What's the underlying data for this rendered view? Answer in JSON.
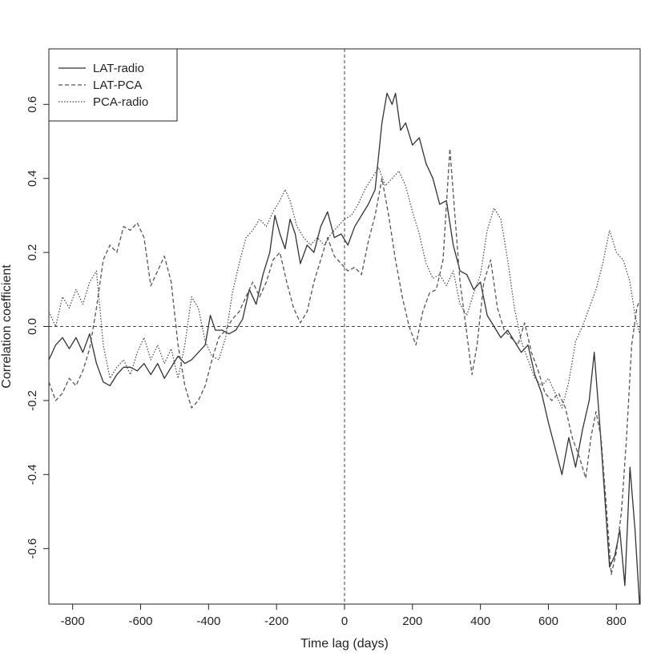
{
  "chart_data": {
    "type": "line",
    "title": "",
    "xlabel": "Time lag (days)",
    "ylabel": "Correlation coefficient",
    "xlim": [
      -870,
      870
    ],
    "ylim": [
      -0.75,
      0.75
    ],
    "xticks": [
      -800,
      -600,
      -400,
      -200,
      0,
      200,
      400,
      600,
      800
    ],
    "yticks": [
      -0.6,
      -0.4,
      -0.2,
      0.0,
      0.2,
      0.4,
      0.6
    ],
    "xtick_labels": [
      "-800",
      "-600",
      "-400",
      "-200",
      "0",
      "200",
      "400",
      "600",
      "800"
    ],
    "ytick_labels": [
      "-0.6",
      "-0.4",
      "-0.2",
      "0.0",
      "0.2",
      "0.4",
      "0.6"
    ],
    "reference_lines": {
      "horizontal": 0.0,
      "vertical": 0
    },
    "grid": false,
    "legend": {
      "position": "top-left"
    },
    "series": [
      {
        "name": "LAT-radio",
        "line_style": "solid",
        "color": "#333333",
        "points": [
          [
            -870,
            -0.09
          ],
          [
            -850,
            -0.05
          ],
          [
            -830,
            -0.03
          ],
          [
            -810,
            -0.06
          ],
          [
            -790,
            -0.03
          ],
          [
            -770,
            -0.07
          ],
          [
            -750,
            -0.02
          ],
          [
            -730,
            -0.1
          ],
          [
            -710,
            -0.15
          ],
          [
            -690,
            -0.16
          ],
          [
            -670,
            -0.13
          ],
          [
            -650,
            -0.11
          ],
          [
            -630,
            -0.11
          ],
          [
            -610,
            -0.12
          ],
          [
            -590,
            -0.1
          ],
          [
            -570,
            -0.13
          ],
          [
            -550,
            -0.1
          ],
          [
            -530,
            -0.14
          ],
          [
            -510,
            -0.11
          ],
          [
            -490,
            -0.08
          ],
          [
            -470,
            -0.1
          ],
          [
            -450,
            -0.09
          ],
          [
            -430,
            -0.07
          ],
          [
            -410,
            -0.05
          ],
          [
            -395,
            0.03
          ],
          [
            -380,
            -0.01
          ],
          [
            -360,
            -0.01
          ],
          [
            -340,
            -0.02
          ],
          [
            -320,
            -0.01
          ],
          [
            -300,
            0.02
          ],
          [
            -280,
            0.1
          ],
          [
            -260,
            0.06
          ],
          [
            -240,
            0.14
          ],
          [
            -220,
            0.2
          ],
          [
            -205,
            0.3
          ],
          [
            -190,
            0.25
          ],
          [
            -175,
            0.21
          ],
          [
            -160,
            0.29
          ],
          [
            -145,
            0.25
          ],
          [
            -130,
            0.17
          ],
          [
            -110,
            0.22
          ],
          [
            -90,
            0.2
          ],
          [
            -70,
            0.27
          ],
          [
            -50,
            0.31
          ],
          [
            -30,
            0.24
          ],
          [
            -10,
            0.25
          ],
          [
            10,
            0.22
          ],
          [
            30,
            0.27
          ],
          [
            50,
            0.3
          ],
          [
            70,
            0.33
          ],
          [
            90,
            0.37
          ],
          [
            110,
            0.55
          ],
          [
            125,
            0.63
          ],
          [
            140,
            0.6
          ],
          [
            150,
            0.63
          ],
          [
            165,
            0.53
          ],
          [
            180,
            0.55
          ],
          [
            200,
            0.49
          ],
          [
            220,
            0.51
          ],
          [
            240,
            0.44
          ],
          [
            260,
            0.4
          ],
          [
            280,
            0.33
          ],
          [
            300,
            0.34
          ],
          [
            320,
            0.22
          ],
          [
            340,
            0.15
          ],
          [
            360,
            0.14
          ],
          [
            380,
            0.1
          ],
          [
            400,
            0.12
          ],
          [
            420,
            0.03
          ],
          [
            440,
            0.0
          ],
          [
            460,
            -0.03
          ],
          [
            480,
            -0.01
          ],
          [
            500,
            -0.04
          ],
          [
            520,
            -0.07
          ],
          [
            540,
            -0.05
          ],
          [
            560,
            -0.13
          ],
          [
            580,
            -0.18
          ],
          [
            600,
            -0.26
          ],
          [
            620,
            -0.33
          ],
          [
            640,
            -0.4
          ],
          [
            660,
            -0.3
          ],
          [
            680,
            -0.38
          ],
          [
            700,
            -0.28
          ],
          [
            720,
            -0.2
          ],
          [
            735,
            -0.07
          ],
          [
            750,
            -0.25
          ],
          [
            765,
            -0.45
          ],
          [
            780,
            -0.65
          ],
          [
            795,
            -0.62
          ],
          [
            810,
            -0.55
          ],
          [
            825,
            -0.7
          ],
          [
            840,
            -0.38
          ],
          [
            855,
            -0.55
          ],
          [
            868,
            -0.75
          ]
        ]
      },
      {
        "name": "LAT-PCA",
        "line_style": "dashed",
        "color": "#555555",
        "points": [
          [
            -870,
            -0.15
          ],
          [
            -850,
            -0.2
          ],
          [
            -830,
            -0.18
          ],
          [
            -810,
            -0.14
          ],
          [
            -790,
            -0.16
          ],
          [
            -770,
            -0.12
          ],
          [
            -750,
            -0.06
          ],
          [
            -730,
            0.05
          ],
          [
            -710,
            0.18
          ],
          [
            -690,
            0.22
          ],
          [
            -670,
            0.2
          ],
          [
            -650,
            0.27
          ],
          [
            -630,
            0.26
          ],
          [
            -610,
            0.28
          ],
          [
            -590,
            0.24
          ],
          [
            -570,
            0.11
          ],
          [
            -550,
            0.15
          ],
          [
            -530,
            0.19
          ],
          [
            -510,
            0.12
          ],
          [
            -490,
            -0.05
          ],
          [
            -470,
            -0.16
          ],
          [
            -450,
            -0.22
          ],
          [
            -430,
            -0.2
          ],
          [
            -410,
            -0.16
          ],
          [
            -390,
            -0.09
          ],
          [
            -370,
            -0.03
          ],
          [
            -350,
            -0.01
          ],
          [
            -330,
            0.02
          ],
          [
            -310,
            0.04
          ],
          [
            -290,
            0.08
          ],
          [
            -270,
            0.12
          ],
          [
            -250,
            0.08
          ],
          [
            -230,
            0.12
          ],
          [
            -210,
            0.18
          ],
          [
            -190,
            0.2
          ],
          [
            -170,
            0.12
          ],
          [
            -150,
            0.05
          ],
          [
            -130,
            0.01
          ],
          [
            -110,
            0.04
          ],
          [
            -90,
            0.12
          ],
          [
            -70,
            0.18
          ],
          [
            -50,
            0.24
          ],
          [
            -30,
            0.19
          ],
          [
            -10,
            0.17
          ],
          [
            10,
            0.15
          ],
          [
            30,
            0.16
          ],
          [
            50,
            0.14
          ],
          [
            70,
            0.23
          ],
          [
            90,
            0.3
          ],
          [
            110,
            0.4
          ],
          [
            130,
            0.3
          ],
          [
            150,
            0.18
          ],
          [
            170,
            0.08
          ],
          [
            190,
            0.0
          ],
          [
            210,
            -0.05
          ],
          [
            230,
            0.04
          ],
          [
            250,
            0.09
          ],
          [
            270,
            0.1
          ],
          [
            290,
            0.18
          ],
          [
            310,
            0.48
          ],
          [
            325,
            0.3
          ],
          [
            340,
            0.12
          ],
          [
            360,
            -0.02
          ],
          [
            375,
            -0.13
          ],
          [
            390,
            -0.05
          ],
          [
            410,
            0.12
          ],
          [
            430,
            0.18
          ],
          [
            450,
            0.05
          ],
          [
            470,
            -0.01
          ],
          [
            490,
            -0.03
          ],
          [
            510,
            -0.05
          ],
          [
            530,
            0.01
          ],
          [
            550,
            -0.07
          ],
          [
            570,
            -0.12
          ],
          [
            590,
            -0.18
          ],
          [
            610,
            -0.2
          ],
          [
            630,
            -0.18
          ],
          [
            650,
            -0.22
          ],
          [
            670,
            -0.3
          ],
          [
            690,
            -0.35
          ],
          [
            710,
            -0.41
          ],
          [
            725,
            -0.3
          ],
          [
            740,
            -0.23
          ],
          [
            755,
            -0.3
          ],
          [
            770,
            -0.48
          ],
          [
            785,
            -0.67
          ],
          [
            800,
            -0.61
          ],
          [
            815,
            -0.5
          ],
          [
            830,
            -0.3
          ],
          [
            845,
            -0.05
          ],
          [
            860,
            0.05
          ],
          [
            868,
            0.07
          ]
        ]
      },
      {
        "name": "PCA-radio",
        "line_style": "dotted",
        "color": "#444444",
        "points": [
          [
            -870,
            0.04
          ],
          [
            -850,
            0.0
          ],
          [
            -830,
            0.08
          ],
          [
            -810,
            0.05
          ],
          [
            -790,
            0.1
          ],
          [
            -770,
            0.06
          ],
          [
            -750,
            0.12
          ],
          [
            -730,
            0.15
          ],
          [
            -710,
            -0.05
          ],
          [
            -690,
            -0.14
          ],
          [
            -670,
            -0.11
          ],
          [
            -650,
            -0.09
          ],
          [
            -630,
            -0.13
          ],
          [
            -610,
            -0.07
          ],
          [
            -590,
            -0.03
          ],
          [
            -570,
            -0.09
          ],
          [
            -550,
            -0.05
          ],
          [
            -530,
            -0.1
          ],
          [
            -510,
            -0.06
          ],
          [
            -490,
            -0.14
          ],
          [
            -470,
            -0.05
          ],
          [
            -450,
            0.08
          ],
          [
            -430,
            0.05
          ],
          [
            -410,
            -0.04
          ],
          [
            -390,
            -0.08
          ],
          [
            -370,
            -0.09
          ],
          [
            -350,
            -0.03
          ],
          [
            -330,
            0.09
          ],
          [
            -310,
            0.17
          ],
          [
            -290,
            0.24
          ],
          [
            -270,
            0.26
          ],
          [
            -250,
            0.29
          ],
          [
            -230,
            0.27
          ],
          [
            -210,
            0.31
          ],
          [
            -190,
            0.34
          ],
          [
            -175,
            0.37
          ],
          [
            -160,
            0.34
          ],
          [
            -140,
            0.27
          ],
          [
            -120,
            0.24
          ],
          [
            -100,
            0.22
          ],
          [
            -80,
            0.24
          ],
          [
            -60,
            0.22
          ],
          [
            -40,
            0.25
          ],
          [
            -20,
            0.27
          ],
          [
            0,
            0.29
          ],
          [
            20,
            0.3
          ],
          [
            40,
            0.33
          ],
          [
            60,
            0.37
          ],
          [
            80,
            0.4
          ],
          [
            100,
            0.43
          ],
          [
            120,
            0.38
          ],
          [
            140,
            0.4
          ],
          [
            160,
            0.42
          ],
          [
            180,
            0.38
          ],
          [
            200,
            0.31
          ],
          [
            220,
            0.25
          ],
          [
            240,
            0.17
          ],
          [
            260,
            0.13
          ],
          [
            280,
            0.14
          ],
          [
            300,
            0.11
          ],
          [
            320,
            0.15
          ],
          [
            340,
            0.06
          ],
          [
            360,
            0.03
          ],
          [
            380,
            0.09
          ],
          [
            400,
            0.14
          ],
          [
            420,
            0.26
          ],
          [
            440,
            0.32
          ],
          [
            460,
            0.29
          ],
          [
            480,
            0.18
          ],
          [
            500,
            0.05
          ],
          [
            520,
            -0.04
          ],
          [
            540,
            -0.09
          ],
          [
            560,
            -0.14
          ],
          [
            580,
            -0.16
          ],
          [
            600,
            -0.14
          ],
          [
            620,
            -0.18
          ],
          [
            640,
            -0.22
          ],
          [
            660,
            -0.15
          ],
          [
            680,
            -0.04
          ],
          [
            700,
            0.0
          ],
          [
            720,
            0.05
          ],
          [
            740,
            0.1
          ],
          [
            760,
            0.17
          ],
          [
            780,
            0.26
          ],
          [
            800,
            0.2
          ],
          [
            820,
            0.18
          ],
          [
            840,
            0.12
          ],
          [
            855,
            0.03
          ],
          [
            868,
            -0.02
          ]
        ]
      }
    ]
  }
}
